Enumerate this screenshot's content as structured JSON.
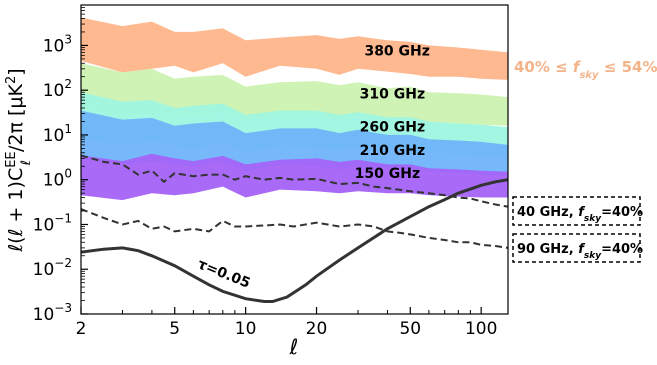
{
  "chart_data": {
    "type": "area",
    "x_scale": "log",
    "y_scale": "log",
    "xlim": [
      2,
      130
    ],
    "ylim": [
      0.001,
      8000
    ],
    "xlabel": "ℓ",
    "ylabel": "ℓ(ℓ+1)C_ℓ^EE/2π [μK²]",
    "x_ticks": [
      {
        "value": 2,
        "label": "2"
      },
      {
        "value": 5,
        "label": "5"
      },
      {
        "value": 10,
        "label": "10"
      },
      {
        "value": 20,
        "label": "20"
      },
      {
        "value": 50,
        "label": "50"
      },
      {
        "value": 100,
        "label": "100"
      }
    ],
    "y_ticks": [
      {
        "value": 0.001,
        "base": "10",
        "exp": "−3"
      },
      {
        "value": 0.01,
        "base": "10",
        "exp": "−2"
      },
      {
        "value": 0.1,
        "base": "10",
        "exp": "−1"
      },
      {
        "value": 1,
        "base": "10",
        "exp": "0"
      },
      {
        "value": 10,
        "base": "10",
        "exp": "1"
      },
      {
        "value": 100,
        "base": "10",
        "exp": "2"
      },
      {
        "value": 1000,
        "base": "10",
        "exp": "3"
      }
    ],
    "bands": [
      {
        "name": "380 GHz",
        "color": "#ffb58a",
        "label_x": 44,
        "label_y": 600,
        "points": [
          [
            2,
            450,
            4200
          ],
          [
            3,
            250,
            2700
          ],
          [
            4,
            300,
            3400
          ],
          [
            5,
            350,
            2000
          ],
          [
            6,
            250,
            2000
          ],
          [
            8,
            400,
            2400
          ],
          [
            10,
            200,
            1300
          ],
          [
            14,
            350,
            1500
          ],
          [
            20,
            300,
            1700
          ],
          [
            25,
            220,
            1400
          ],
          [
            30,
            300,
            1600
          ],
          [
            40,
            260,
            1300
          ],
          [
            50,
            230,
            1200
          ],
          [
            60,
            200,
            1000
          ],
          [
            80,
            200,
            900
          ],
          [
            100,
            180,
            800
          ],
          [
            130,
            170,
            700
          ]
        ]
      },
      {
        "name": "310 GHz",
        "color": "#ccf2b0",
        "label_x": 42,
        "label_y": 65,
        "points": [
          [
            2,
            40,
            400
          ],
          [
            3,
            25,
            250
          ],
          [
            4,
            30,
            300
          ],
          [
            5,
            30,
            180
          ],
          [
            6,
            25,
            200
          ],
          [
            8,
            35,
            220
          ],
          [
            10,
            20,
            120
          ],
          [
            14,
            30,
            150
          ],
          [
            20,
            28,
            160
          ],
          [
            25,
            22,
            130
          ],
          [
            30,
            28,
            150
          ],
          [
            40,
            24,
            110
          ],
          [
            50,
            22,
            120
          ],
          [
            60,
            20,
            90
          ],
          [
            80,
            18,
            85
          ],
          [
            100,
            17,
            80
          ],
          [
            130,
            16,
            70
          ]
        ]
      },
      {
        "name": "260 GHz",
        "color": "#9ef5df",
        "label_x": 42,
        "label_y": 12,
        "points": [
          [
            2,
            8,
            90
          ],
          [
            3,
            6,
            55
          ],
          [
            4,
            7,
            60
          ],
          [
            5,
            6,
            40
          ],
          [
            6,
            5,
            45
          ],
          [
            8,
            7,
            50
          ],
          [
            10,
            4,
            28
          ],
          [
            14,
            6,
            35
          ],
          [
            20,
            5.5,
            35
          ],
          [
            25,
            4.5,
            28
          ],
          [
            30,
            5.5,
            32
          ],
          [
            40,
            5,
            25
          ],
          [
            50,
            4.5,
            25
          ],
          [
            60,
            4,
            20
          ],
          [
            80,
            3.8,
            18
          ],
          [
            100,
            3.5,
            17
          ],
          [
            130,
            3.2,
            15
          ]
        ]
      },
      {
        "name": "210 GHz",
        "color": "#6fb4fa",
        "label_x": 42,
        "label_y": 3.6,
        "points": [
          [
            2,
            3,
            35
          ],
          [
            3,
            2.2,
            22
          ],
          [
            4,
            2.5,
            24
          ],
          [
            5,
            2.2,
            16
          ],
          [
            6,
            2,
            18
          ],
          [
            8,
            2.6,
            20
          ],
          [
            10,
            1.5,
            11
          ],
          [
            14,
            2.2,
            14
          ],
          [
            20,
            2,
            14
          ],
          [
            25,
            1.7,
            11
          ],
          [
            30,
            2,
            13
          ],
          [
            40,
            1.8,
            10
          ],
          [
            50,
            1.7,
            10
          ],
          [
            60,
            1.5,
            8
          ],
          [
            80,
            1.4,
            7.5
          ],
          [
            100,
            1.3,
            7
          ],
          [
            130,
            1.2,
            6
          ]
        ]
      },
      {
        "name": "150 GHz",
        "color": "#a463f7",
        "label_x": 40,
        "label_y": 1.1,
        "points": [
          [
            2,
            0.45,
            3.5
          ],
          [
            3,
            0.35,
            2.6
          ],
          [
            4,
            0.5,
            3.8
          ],
          [
            5,
            0.45,
            3
          ],
          [
            6,
            0.5,
            2.6
          ],
          [
            8,
            0.7,
            3.4
          ],
          [
            10,
            0.4,
            2.2
          ],
          [
            14,
            0.6,
            2.8
          ],
          [
            20,
            0.55,
            3
          ],
          [
            25,
            0.5,
            2.5
          ],
          [
            30,
            0.55,
            2.8
          ],
          [
            40,
            0.5,
            2.2
          ],
          [
            50,
            0.5,
            2.2
          ],
          [
            60,
            0.45,
            1.8
          ],
          [
            80,
            0.42,
            1.7
          ],
          [
            100,
            0.4,
            1.6
          ],
          [
            130,
            0.4,
            1.5
          ]
        ]
      }
    ],
    "series": [
      {
        "name": "40 GHz, f_sky=40%",
        "style": "dashed",
        "color": "#333333",
        "points": [
          [
            2,
            3.5
          ],
          [
            2.5,
            2.5
          ],
          [
            3,
            2.2
          ],
          [
            3.5,
            1.3
          ],
          [
            4,
            1.6
          ],
          [
            4.5,
            0.9
          ],
          [
            5,
            1.4
          ],
          [
            6,
            1.2
          ],
          [
            7,
            1.3
          ],
          [
            8,
            1.3
          ],
          [
            9,
            1.0
          ],
          [
            10,
            1.2
          ],
          [
            12,
            1.0
          ],
          [
            14,
            1.1
          ],
          [
            16,
            1.0
          ],
          [
            20,
            1.05
          ],
          [
            25,
            0.8
          ],
          [
            30,
            0.85
          ],
          [
            35,
            0.7
          ],
          [
            40,
            0.65
          ],
          [
            50,
            0.55
          ],
          [
            60,
            0.5
          ],
          [
            70,
            0.45
          ],
          [
            80,
            0.4
          ],
          [
            90,
            0.38
          ],
          [
            100,
            0.33
          ],
          [
            115,
            0.28
          ],
          [
            130,
            0.25
          ]
        ]
      },
      {
        "name": "90 GHz, f_sky=40%",
        "style": "dashed",
        "color": "#333333",
        "points": [
          [
            2,
            0.22
          ],
          [
            2.5,
            0.14
          ],
          [
            3,
            0.1
          ],
          [
            3.5,
            0.12
          ],
          [
            4,
            0.08
          ],
          [
            4.5,
            0.09
          ],
          [
            5,
            0.07
          ],
          [
            6,
            0.08
          ],
          [
            7,
            0.07
          ],
          [
            8,
            0.12
          ],
          [
            9,
            0.09
          ],
          [
            10,
            0.09
          ],
          [
            12,
            0.095
          ],
          [
            14,
            0.1
          ],
          [
            16,
            0.09
          ],
          [
            20,
            0.11
          ],
          [
            25,
            0.09
          ],
          [
            30,
            0.1
          ],
          [
            35,
            0.09
          ],
          [
            40,
            0.07
          ],
          [
            45,
            0.065
          ],
          [
            50,
            0.06
          ],
          [
            60,
            0.05
          ],
          [
            70,
            0.045
          ],
          [
            80,
            0.04
          ],
          [
            90,
            0.04
          ],
          [
            100,
            0.035
          ],
          [
            115,
            0.033
          ],
          [
            130,
            0.03
          ]
        ]
      },
      {
        "name": "τ=0.05",
        "style": "solid",
        "color": "#333333",
        "label_x": 6.2,
        "label_y": 0.011,
        "points": [
          [
            2,
            0.024
          ],
          [
            2.5,
            0.028
          ],
          [
            3,
            0.03
          ],
          [
            3.5,
            0.026
          ],
          [
            4,
            0.02
          ],
          [
            5,
            0.012
          ],
          [
            6,
            0.007
          ],
          [
            7,
            0.0045
          ],
          [
            8,
            0.0032
          ],
          [
            10,
            0.0022
          ],
          [
            12,
            0.0019
          ],
          [
            13,
            0.0019
          ],
          [
            15,
            0.0024
          ],
          [
            18,
            0.0045
          ],
          [
            20,
            0.007
          ],
          [
            25,
            0.016
          ],
          [
            30,
            0.03
          ],
          [
            40,
            0.08
          ],
          [
            50,
            0.15
          ],
          [
            60,
            0.25
          ],
          [
            70,
            0.36
          ],
          [
            80,
            0.5
          ],
          [
            100,
            0.75
          ],
          [
            115,
            0.9
          ],
          [
            130,
            1.0
          ]
        ]
      }
    ],
    "legend": {
      "band_range": "40% ≤ f_sky ≤ 54%",
      "band_range_color": "#f4b48a",
      "box_40": "40 GHz, f_sky=40%",
      "box_90": "90 GHz, f_sky=40%"
    }
  }
}
